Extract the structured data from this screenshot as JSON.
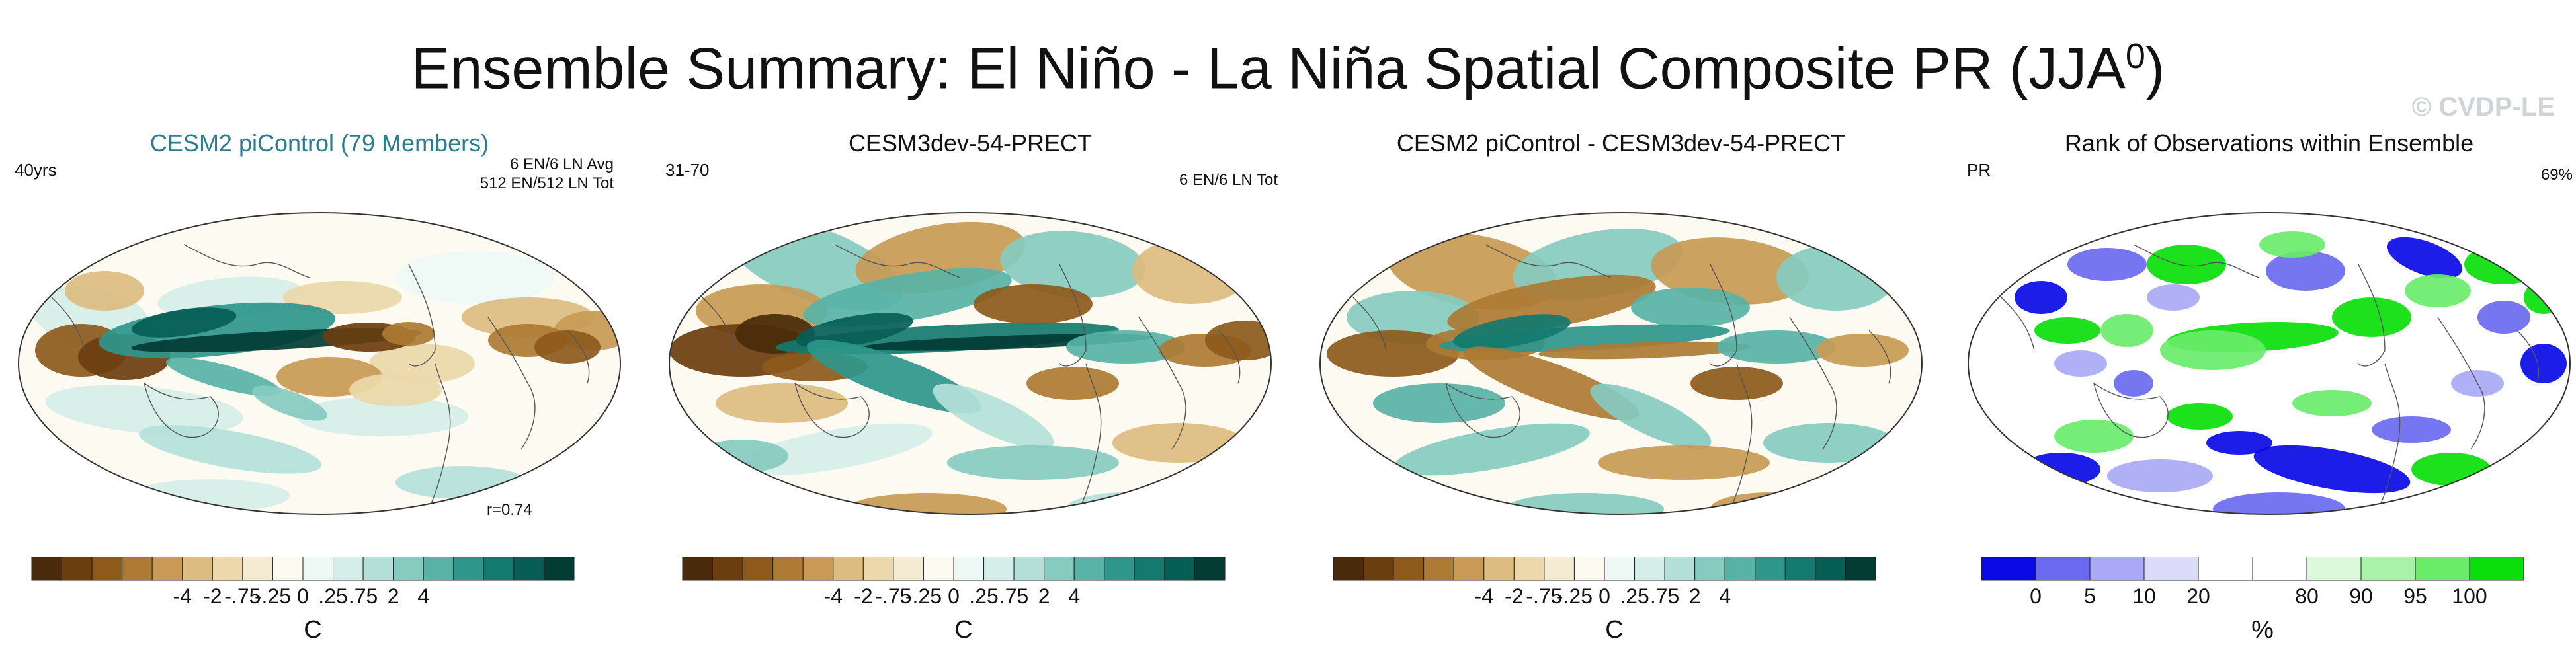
{
  "title": "Ensemble Summary: El Niño - La Niña Spatial Composite PR (JJA",
  "title_sup": "0",
  "title_tail": ")",
  "watermark": "© CVDP-LE",
  "colors": {
    "brown_scale": [
      "#4a2b0b",
      "#6b3d0f",
      "#8d5a1c",
      "#ad7a33",
      "#c89a55",
      "#dcbc80",
      "#ecd8aa",
      "#f5ebd2",
      "#fdfaf2",
      "#eef8f5",
      "#d5eee9",
      "#b3e1d9",
      "#85cbc0",
      "#58b3a6",
      "#2e968b",
      "#147a6f",
      "#075e55",
      "#023c35"
    ],
    "rank_scale": [
      "#0a0ae6",
      "#6a6af0",
      "#a9a9f5",
      "#dcdcfa",
      "#ffffff",
      "#ffffff",
      "#dcf9dc",
      "#a9f3a9",
      "#6aeb6a",
      "#0ade0a"
    ]
  },
  "panels": [
    {
      "title": "CESM2 piControl (79 Members)",
      "left_label": "40yrs",
      "right_lines": [
        "6 EN/6 LN Avg",
        "512 EN/512 LN Tot"
      ],
      "bottom_label": "r=0.74",
      "colorbar": "precip",
      "ticks": [
        "-4",
        "-2",
        "-.75",
        "-.25",
        "0",
        ".25",
        ".75",
        "2",
        "4"
      ],
      "unit": "C"
    },
    {
      "title": "CESM3dev-54-PRECT",
      "left_label": "31-70",
      "right_lines": [
        "6 EN/6 LN Tot"
      ],
      "bottom_label": "",
      "colorbar": "precip",
      "ticks": [
        "-4",
        "-2",
        "-.75",
        "-.25",
        "0",
        ".25",
        ".75",
        "2",
        "4"
      ],
      "unit": "C"
    },
    {
      "title": "CESM2 piControl - CESM3dev-54-PRECT",
      "left_label": "",
      "right_lines": [],
      "bottom_label": "",
      "colorbar": "precip",
      "ticks": [
        "-4",
        "-2",
        "-.75",
        "-.25",
        "0",
        ".25",
        ".75",
        "2",
        "4"
      ],
      "unit": "C"
    },
    {
      "title": "Rank of Observations within Ensemble",
      "left_label": "PR",
      "right_lines": [
        "69%"
      ],
      "bottom_label": "",
      "colorbar": "rank",
      "ticks": [
        "0",
        "5",
        "10",
        "20",
        "80",
        "90",
        "95",
        "100"
      ],
      "unit": "%"
    }
  ]
}
